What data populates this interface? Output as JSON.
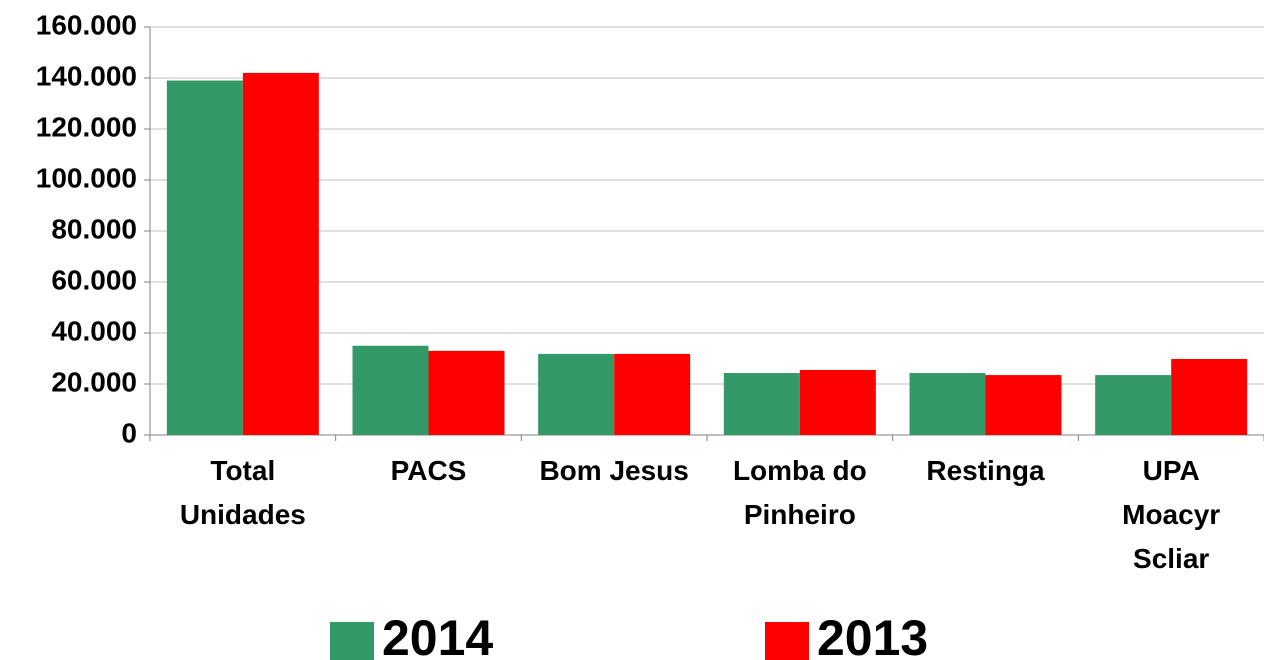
{
  "chart_data": {
    "type": "bar",
    "categories": [
      "Total\nUnidades",
      "PACS",
      "Bom Jesus",
      "Lomba do\nPinheiro",
      "Restinga",
      "UPA\nMoacyr\nScliar"
    ],
    "series": [
      {
        "name": "2014",
        "color": "#339966",
        "values": [
          139000,
          35000,
          31800,
          24300,
          24300,
          23500
        ]
      },
      {
        "name": "2013",
        "color": "#ff0000",
        "values": [
          142000,
          33000,
          31800,
          25500,
          23500,
          29800
        ]
      }
    ],
    "ylim": [
      0,
      160000
    ],
    "yticks": [
      0,
      {
        "value": 20000,
        "label": "20.000"
      },
      {
        "value": 40000,
        "label": "40.000"
      },
      {
        "value": 60000,
        "label": "60.000"
      },
      {
        "value": 80000,
        "label": "80.000"
      },
      {
        "value": 100000,
        "label": "100.000"
      },
      {
        "value": 120000,
        "label": "120.000"
      },
      {
        "value": 140000,
        "label": "140.000"
      },
      {
        "value": 160000,
        "label": "160.000"
      }
    ],
    "grid": true,
    "legend": "bottom"
  }
}
